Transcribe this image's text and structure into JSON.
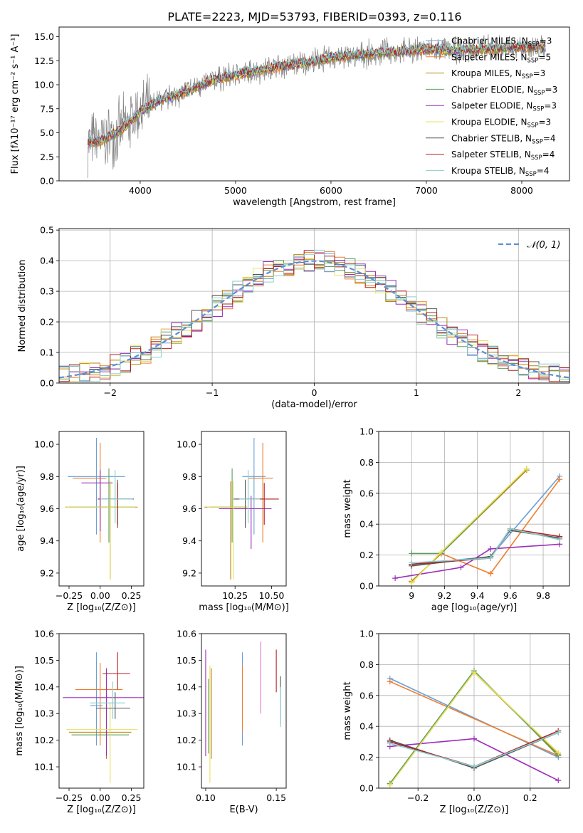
{
  "title": "PLATE=2223, MJD=53793, FIBERID=0393, z=0.116",
  "model_colors": [
    "#6a9fd8",
    "#ef7d2c",
    "#b8860b",
    "#5e9c5e",
    "#9b30b8",
    "#e8e060",
    "#555555",
    "#b22222",
    "#87cecf"
  ],
  "chart_data": [
    {
      "id": "spectrum",
      "type": "line",
      "title": "PLATE=2223, MJD=53793, FIBERID=0393, z=0.116",
      "xlabel": "wavelength [Angstrom, rest frame]",
      "ylabel": "Flux [fλ10⁻¹⁷ erg cm⁻² s⁻¹ A⁻¹]",
      "xlim": [
        3150,
        8500
      ],
      "ylim": [
        0,
        16
      ],
      "xticks": [
        4000,
        5000,
        6000,
        7000,
        8000
      ],
      "yticks": [
        0.0,
        2.5,
        5.0,
        7.5,
        10.0,
        12.5,
        15.0
      ],
      "legend_position": "right",
      "data_curve": {
        "x": [
          3450,
          3600,
          3800,
          4000,
          4200,
          4400,
          4600,
          4800,
          5000,
          5200,
          5400,
          5600,
          5800,
          6000,
          6200,
          6400,
          6600,
          6800,
          7000,
          7200,
          7400,
          7600,
          7800,
          8000,
          8200,
          8250
        ],
        "y": [
          4.0,
          4.2,
          5.3,
          7.2,
          8.3,
          9.0,
          9.8,
          10.6,
          11.0,
          11.4,
          11.8,
          12.1,
          12.4,
          12.8,
          13.0,
          13.2,
          13.4,
          13.5,
          13.7,
          13.6,
          13.6,
          13.7,
          13.8,
          13.9,
          13.8,
          13.9
        ]
      },
      "series": [
        {
          "name": "Chabrier MILES, N_SSP=3",
          "label_main": "Chabrier MILES, N",
          "label_sub": "SSP",
          "label_tail": "=3"
        },
        {
          "name": "Salpeter MILES, N_SSP=5",
          "label_main": "Salpeter MILES, N",
          "label_sub": "SSP",
          "label_tail": "=5"
        },
        {
          "name": "Kroupa MILES, N_SSP=3",
          "label_main": "Kroupa MILES, N",
          "label_sub": "SSP",
          "label_tail": "=3"
        },
        {
          "name": "Chabrier ELODIE, N_SSP=3",
          "label_main": "Chabrier ELODIE, N",
          "label_sub": "SSP",
          "label_tail": "=3"
        },
        {
          "name": "Salpeter ELODIE, N_SSP=3",
          "label_main": "Salpeter ELODIE, N",
          "label_sub": "SSP",
          "label_tail": "=3"
        },
        {
          "name": "Kroupa ELODIE, N_SSP=3",
          "label_main": "Kroupa ELODIE, N",
          "label_sub": "SSP",
          "label_tail": "=3"
        },
        {
          "name": "Chabrier STELIB, N_SSP=4",
          "label_main": "Chabrier STELIB, N",
          "label_sub": "SSP",
          "label_tail": "=4"
        },
        {
          "name": "Salpeter STELIB, N_SSP=4",
          "label_main": "Salpeter STELIB, N",
          "label_sub": "SSP",
          "label_tail": "=4"
        },
        {
          "name": "Kroupa STELIB, N_SSP=4",
          "label_main": "Kroupa STELIB, N",
          "label_sub": "SSP",
          "label_tail": "=4"
        }
      ]
    },
    {
      "id": "residuals",
      "type": "line",
      "xlabel": "(data-model)/error",
      "ylabel": "Normed distribution",
      "xlim": [
        -2.5,
        2.5
      ],
      "ylim": [
        0,
        0.505
      ],
      "xticks": [
        -2,
        -1,
        0,
        1,
        2
      ],
      "xtick_labels": [
        "−2",
        "−1",
        "0",
        "1",
        "2"
      ],
      "yticks": [
        0.0,
        0.1,
        0.2,
        0.3,
        0.4,
        0.5
      ],
      "grid": true,
      "reference_curve": {
        "name": "N(0,1)",
        "label": "𝒩(0, 1)",
        "style": "dashed",
        "color": "#5b8fd9"
      },
      "bin_width": 0.1,
      "legend_position": "top-right"
    },
    {
      "id": "age-vs-Z",
      "type": "scatter",
      "xlabel": "Z [log₁₀(Z/Z⊙)]",
      "ylabel": "age  [log₁₀(age/yr)]",
      "xlim": [
        -0.33,
        0.35
      ],
      "ylim": [
        9.12,
        10.08
      ],
      "xticks": [
        -0.25,
        0.0,
        0.25
      ],
      "xtick_labels": [
        "−0.25",
        "0.00",
        "0.25"
      ],
      "yticks": [
        9.2,
        9.4,
        9.6,
        9.8,
        10.0
      ],
      "points": [
        {
          "x": -0.03,
          "y": 9.8,
          "xerr": [
            0.23,
            0.23
          ],
          "yerr": [
            0.36,
            0.24
          ]
        },
        {
          "x": 0.0,
          "y": 9.79,
          "xerr": [
            0.22,
            0.05
          ],
          "yerr": [
            0.4,
            0.22
          ]
        },
        {
          "x": 0.08,
          "y": 9.61,
          "xerr": [
            0.36,
            0.22
          ],
          "yerr": [
            0.45,
            0.16
          ]
        },
        {
          "x": 0.07,
          "y": 9.61,
          "xerr": [
            0.32,
            0.2
          ],
          "yerr": [
            0.22,
            0.24
          ]
        },
        {
          "x": 0.0,
          "y": 9.76,
          "xerr": [
            0.15,
            0.1
          ],
          "yerr": [
            0.3,
            0.08
          ]
        },
        {
          "x": 0.08,
          "y": 9.61,
          "xerr": [
            0.35,
            0.2
          ],
          "yerr": [
            0.45,
            0.16
          ]
        },
        {
          "x": 0.14,
          "y": 9.66,
          "xerr": [
            0.12,
            0.13
          ],
          "yerr": [
            0.18,
            0.12
          ]
        },
        {
          "x": 0.14,
          "y": 9.66,
          "xerr": [
            0.16,
            0.11
          ],
          "yerr": [
            0.16,
            0.1
          ]
        },
        {
          "x": 0.12,
          "y": 9.66,
          "xerr": [
            0.12,
            0.14
          ],
          "yerr": [
            0.15,
            0.18
          ]
        }
      ]
    },
    {
      "id": "age-vs-mass",
      "type": "scatter",
      "xlabel": "mass [log₁₀(M/M⊙)]",
      "xlim": [
        10.02,
        10.6
      ],
      "ylim": [
        9.12,
        10.08
      ],
      "xticks": [
        10.25,
        10.5
      ],
      "xtick_labels": [
        "10.25",
        "10.50"
      ],
      "yticks": [
        9.2,
        9.4,
        9.6,
        9.8,
        10.0
      ],
      "points": [
        {
          "x": 10.38,
          "y": 9.8,
          "xerr": [
            0.08,
            0.08
          ],
          "yerr": [
            0.36,
            0.24
          ]
        },
        {
          "x": 10.44,
          "y": 9.79,
          "xerr": [
            0.1,
            0.07
          ],
          "yerr": [
            0.4,
            0.22
          ]
        },
        {
          "x": 10.22,
          "y": 9.61,
          "xerr": [
            0.18,
            0.1
          ],
          "yerr": [
            0.45,
            0.16
          ]
        },
        {
          "x": 10.23,
          "y": 9.61,
          "xerr": [
            0.15,
            0.1
          ],
          "yerr": [
            0.22,
            0.24
          ]
        },
        {
          "x": 10.36,
          "y": 9.6,
          "xerr": [
            0.22,
            0.14
          ],
          "yerr": [
            0.25,
            0.08
          ]
        },
        {
          "x": 10.24,
          "y": 9.61,
          "xerr": [
            0.18,
            0.1
          ],
          "yerr": [
            0.45,
            0.16
          ]
        },
        {
          "x": 10.32,
          "y": 9.66,
          "xerr": [
            0.08,
            0.12
          ],
          "yerr": [
            0.18,
            0.12
          ]
        },
        {
          "x": 10.45,
          "y": 9.66,
          "xerr": [
            0.12,
            0.1
          ],
          "yerr": [
            0.16,
            0.1
          ]
        },
        {
          "x": 10.34,
          "y": 9.66,
          "xerr": [
            0.06,
            0.08
          ],
          "yerr": [
            0.15,
            0.18
          ]
        }
      ]
    },
    {
      "id": "mass-weight-vs-age",
      "type": "line",
      "xlabel": "age  [log₁₀(age/yr)]",
      "ylabel": "mass weight",
      "xlim": [
        8.8,
        9.96
      ],
      "ylim": [
        0,
        1.0
      ],
      "xticks": [
        9.0,
        9.2,
        9.4,
        9.6,
        9.8
      ],
      "yticks": [
        0.0,
        0.2,
        0.4,
        0.6,
        0.8,
        1.0
      ],
      "grid": true,
      "series": [
        {
          "x": [
            9.0,
            9.48,
            9.9
          ],
          "y": [
            0.14,
            0.19,
            0.71
          ]
        },
        {
          "x": [
            9.0,
            9.18,
            9.48,
            9.9
          ],
          "y": [
            0.03,
            0.21,
            0.08,
            0.69
          ]
        },
        {
          "x": [
            9.0,
            9.18,
            9.7
          ],
          "y": [
            0.03,
            0.21,
            0.75
          ]
        },
        {
          "x": [
            9.0,
            9.18,
            9.7
          ],
          "y": [
            0.21,
            0.21,
            0.76
          ]
        },
        {
          "x": [
            8.9,
            9.3,
            9.48,
            9.9
          ],
          "y": [
            0.05,
            0.12,
            0.24,
            0.27
          ]
        },
        {
          "x": [
            9.0,
            9.18,
            9.7
          ],
          "y": [
            0.02,
            0.22,
            0.76
          ]
        },
        {
          "x": [
            9.0,
            9.48,
            9.6,
            9.9
          ],
          "y": [
            0.13,
            0.19,
            0.36,
            0.31
          ]
        },
        {
          "x": [
            9.0,
            9.48,
            9.6,
            9.9
          ],
          "y": [
            0.14,
            0.18,
            0.37,
            0.32
          ]
        },
        {
          "x": [
            9.0,
            9.48,
            9.6,
            9.9
          ],
          "y": [
            0.15,
            0.18,
            0.37,
            0.3
          ]
        }
      ]
    },
    {
      "id": "mass-vs-Z",
      "type": "scatter",
      "xlabel": "Z [log₁₀(Z/Z⊙)]",
      "ylabel": "mass [log₁₀(M/M⊙)]",
      "xlim": [
        -0.33,
        0.35
      ],
      "ylim": [
        10.02,
        10.6
      ],
      "xticks": [
        -0.25,
        0.0,
        0.25
      ],
      "xtick_labels": [
        "−0.25",
        "0.00",
        "0.25"
      ],
      "yticks": [
        10.1,
        10.2,
        10.3,
        10.4,
        10.5,
        10.6
      ],
      "points": [
        {
          "x": -0.03,
          "y": 10.33,
          "xerr": [
            0.05,
            0.05
          ],
          "yerr": [
            0.15,
            0.2
          ]
        },
        {
          "x": 0.0,
          "y": 10.39,
          "xerr": [
            0.2,
            0.18
          ],
          "yerr": [
            0.21,
            0.1
          ]
        },
        {
          "x": 0.05,
          "y": 10.23,
          "xerr": [
            0.3,
            0.2
          ],
          "yerr": [
            0.1,
            0.24
          ]
        },
        {
          "x": 0.05,
          "y": 10.22,
          "xerr": [
            0.28,
            0.18
          ],
          "yerr": [
            0.08,
            0.12
          ]
        },
        {
          "x": 0.05,
          "y": 10.36,
          "xerr": [
            0.35,
            0.3
          ],
          "yerr": [
            0.22,
            0.11
          ]
        },
        {
          "x": 0.08,
          "y": 10.24,
          "xerr": [
            0.35,
            0.22
          ],
          "yerr": [
            0.2,
            0.1
          ]
        },
        {
          "x": 0.12,
          "y": 10.32,
          "xerr": [
            0.15,
            0.12
          ],
          "yerr": [
            0.04,
            0.06
          ]
        },
        {
          "x": 0.14,
          "y": 10.45,
          "xerr": [
            0.12,
            0.1
          ],
          "yerr": [
            0.06,
            0.08
          ]
        },
        {
          "x": 0.1,
          "y": 10.34,
          "xerr": [
            0.18,
            0.1
          ],
          "yerr": [
            0.06,
            0.08
          ]
        }
      ]
    },
    {
      "id": "mass-vs-ebv",
      "type": "scatter",
      "xlabel": "E(B-V)",
      "xlim": [
        0.097,
        0.157
      ],
      "ylim": [
        10.02,
        10.6
      ],
      "xticks": [
        0.1,
        0.15
      ],
      "xtick_labels": [
        "0.10",
        "0.15"
      ],
      "yticks": [
        10.1,
        10.2,
        10.3,
        10.4,
        10.5,
        10.6
      ],
      "points": [
        {
          "x": 0.126,
          "y": 10.38,
          "yerr": [
            0.2,
            0.15
          ]
        },
        {
          "x": 0.126,
          "y": 10.38,
          "yerr": [
            0.15,
            0.1
          ]
        },
        {
          "x": 0.104,
          "y": 10.25,
          "yerr": [
            0.12,
            0.22
          ]
        },
        {
          "x": 0.102,
          "y": 10.25,
          "yerr": [
            0.1,
            0.18
          ]
        },
        {
          "x": 0.1,
          "y": 10.36,
          "yerr": [
            0.22,
            0.18
          ]
        },
        {
          "x": 0.103,
          "y": 10.24,
          "yerr": [
            0.2,
            0.24
          ]
        },
        {
          "x": 0.153,
          "y": 10.32,
          "yerr": [
            0.06,
            0.12
          ]
        },
        {
          "x": 0.15,
          "y": 10.45,
          "yerr": [
            0.07,
            0.09
          ]
        },
        {
          "x": 0.153,
          "y": 10.33,
          "yerr": [
            0.08,
            0.07
          ]
        }
      ],
      "extra_points": [
        {
          "x": 0.139,
          "y": 10.42,
          "yerr": [
            0.12,
            0.15
          ],
          "color": "#e377c2"
        }
      ]
    },
    {
      "id": "mass-weight-vs-Z",
      "type": "line",
      "xlabel": "Z [log₁₀(Z/Z⊙)]",
      "ylabel": "mass weight",
      "xlim": [
        -0.34,
        0.34
      ],
      "ylim": [
        0,
        1.0
      ],
      "xticks": [
        -0.2,
        0.0,
        0.2
      ],
      "xtick_labels": [
        "−0.2",
        "0.0",
        "0.2"
      ],
      "yticks": [
        0.0,
        0.2,
        0.4,
        0.6,
        0.8,
        1.0
      ],
      "grid": true,
      "series": [
        {
          "x": [
            -0.3,
            0.3
          ],
          "y": [
            0.71,
            0.2
          ]
        },
        {
          "x": [
            -0.3,
            0.3
          ],
          "y": [
            0.69,
            0.21
          ]
        },
        {
          "x": [
            -0.3,
            0.0,
            0.3
          ],
          "y": [
            0.03,
            0.75,
            0.22
          ]
        },
        {
          "x": [
            -0.3,
            0.0,
            0.3
          ],
          "y": [
            0.03,
            0.76,
            0.21
          ]
        },
        {
          "x": [
            -0.3,
            0.0,
            0.3
          ],
          "y": [
            0.27,
            0.32,
            0.05
          ]
        },
        {
          "x": [
            -0.3,
            0.0,
            0.3
          ],
          "y": [
            0.02,
            0.75,
            0.23
          ]
        },
        {
          "x": [
            -0.3,
            0.0,
            0.3
          ],
          "y": [
            0.31,
            0.13,
            0.36
          ]
        },
        {
          "x": [
            -0.3,
            0.0,
            0.3
          ],
          "y": [
            0.3,
            0.14,
            0.37
          ]
        },
        {
          "x": [
            -0.3,
            0.0,
            0.3
          ],
          "y": [
            0.29,
            0.14,
            0.36
          ]
        }
      ]
    }
  ]
}
